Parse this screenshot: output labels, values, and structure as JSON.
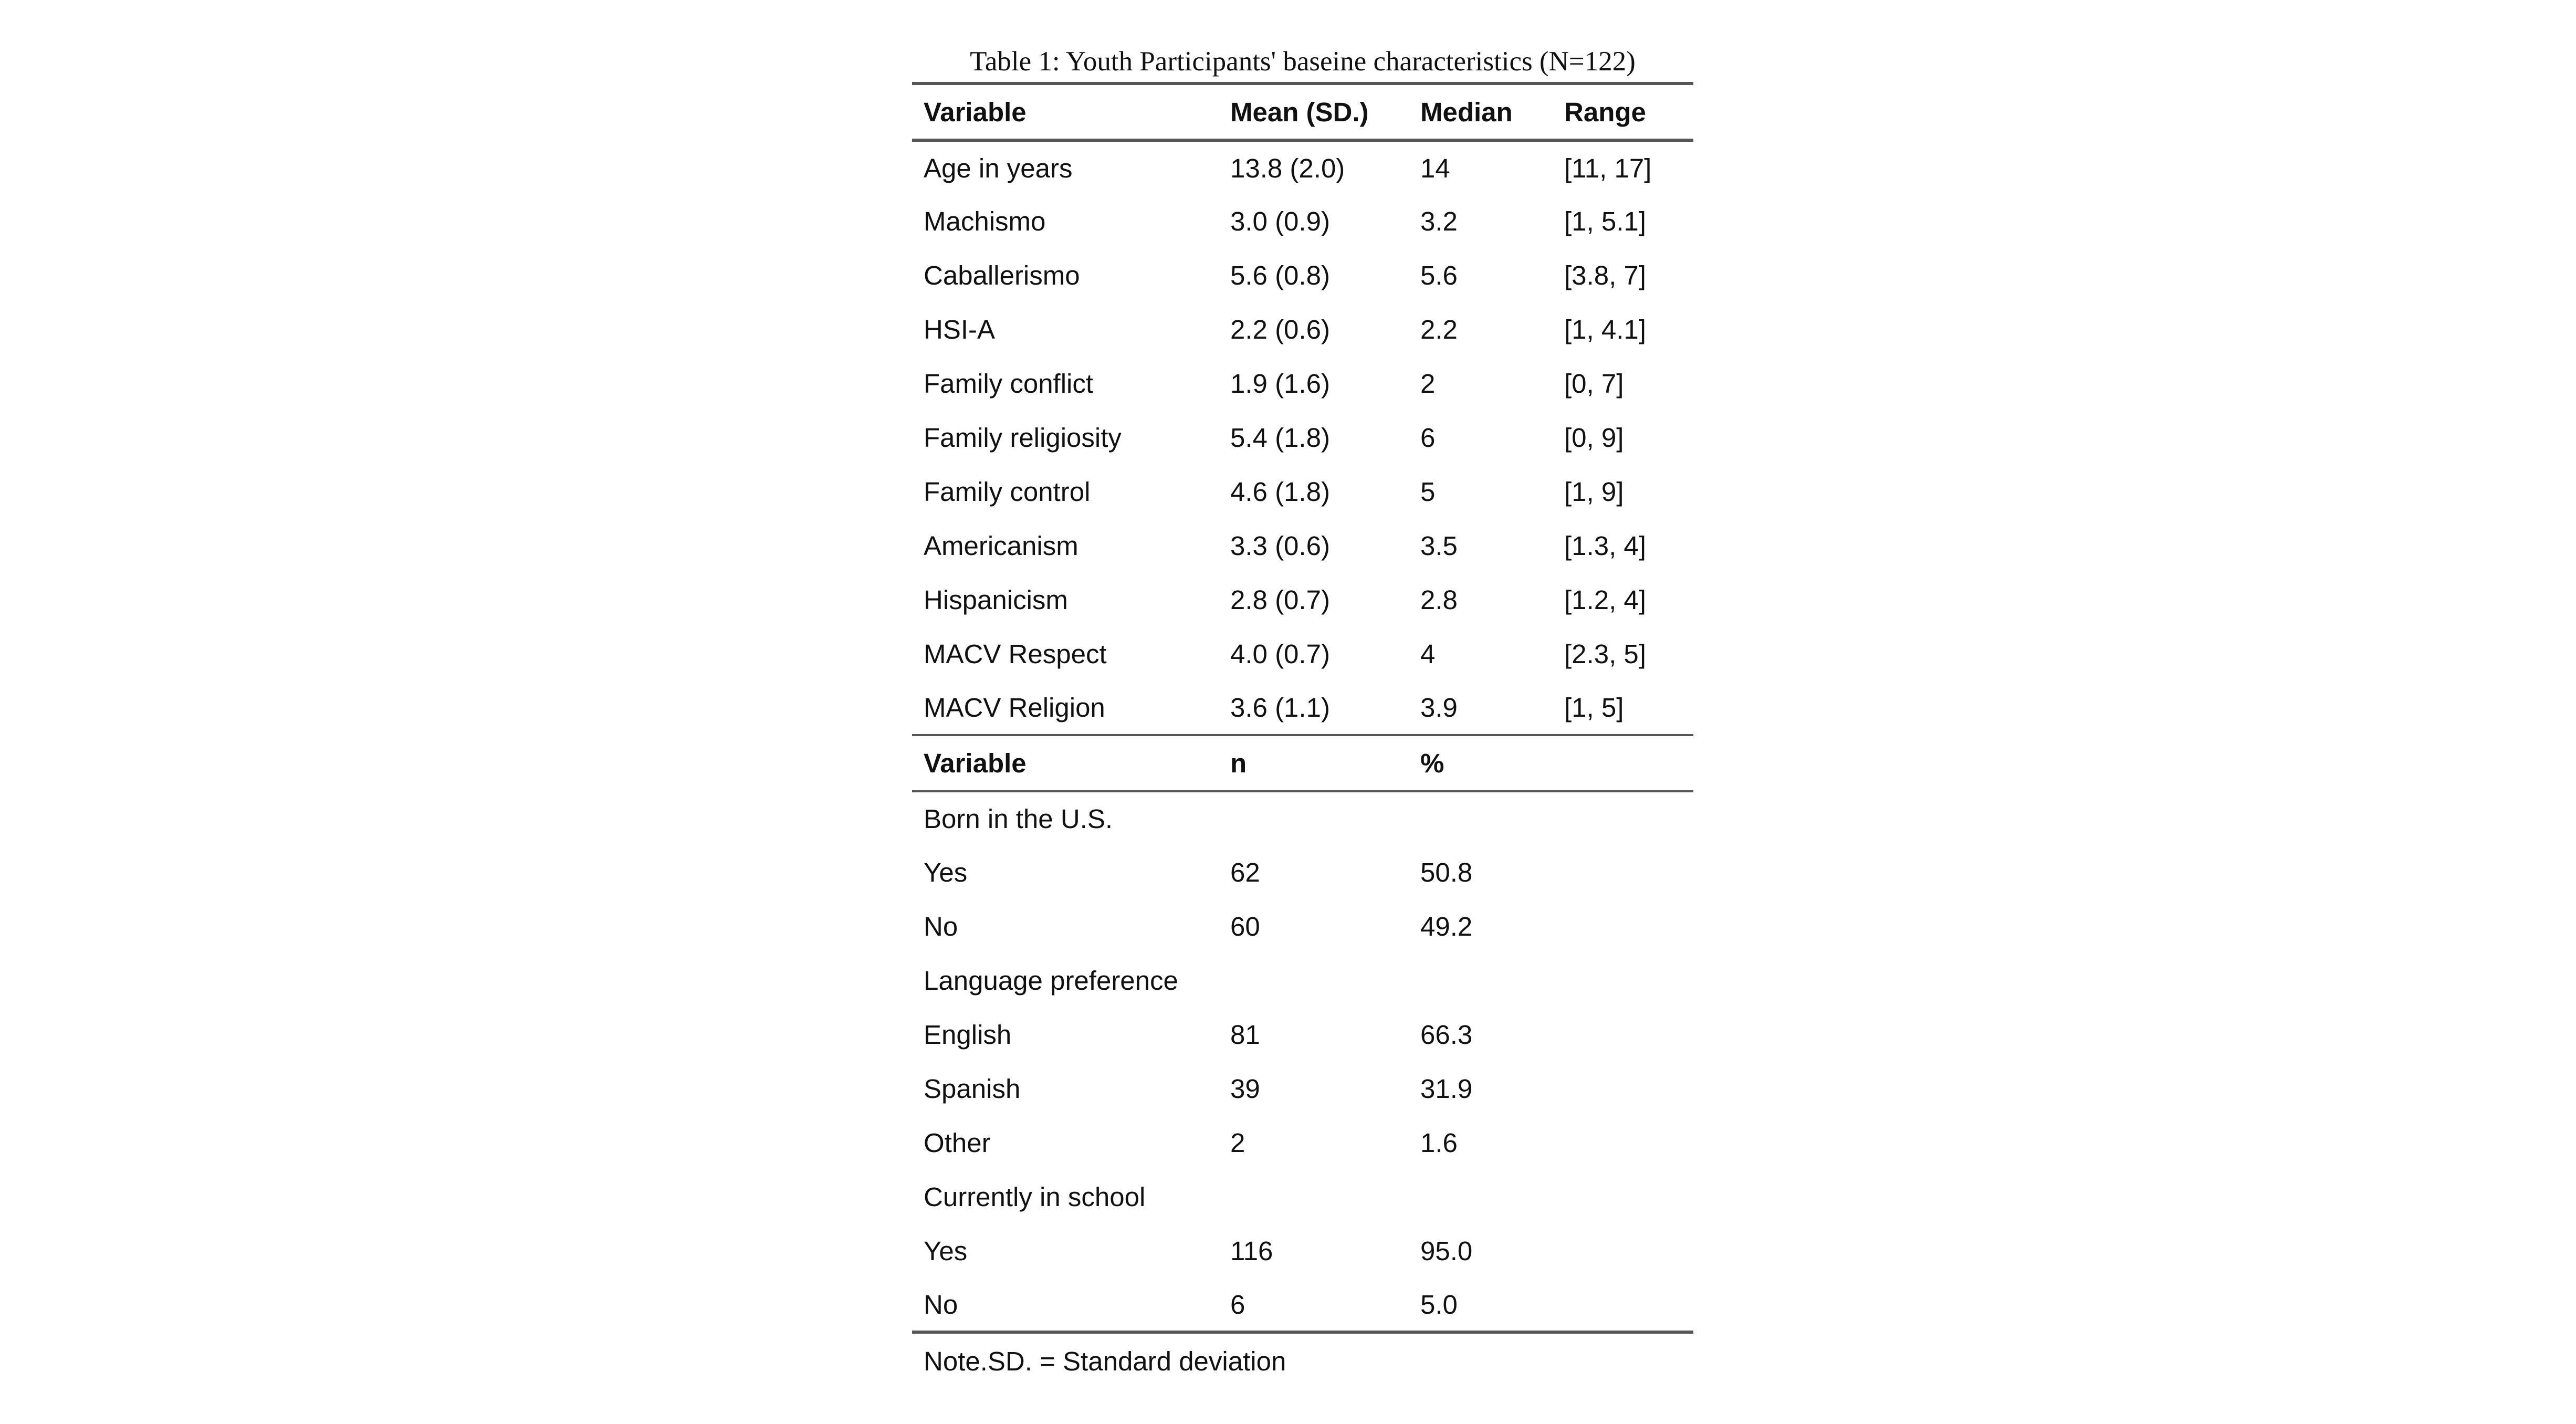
{
  "caption": "Table 1: Youth Participants' baseine characteristics (N=122)",
  "continuous": {
    "headers": [
      "Variable",
      "Mean (SD.)",
      "Median",
      "Range"
    ],
    "rows": [
      [
        "Age in years",
        "13.8 (2.0)",
        "14",
        "[11, 17]"
      ],
      [
        "Machismo",
        "3.0 (0.9)",
        "3.2",
        "[1, 5.1]"
      ],
      [
        "Caballerismo",
        "5.6 (0.8)",
        "5.6",
        "[3.8, 7]"
      ],
      [
        "HSI-A",
        "2.2 (0.6)",
        "2.2",
        "[1, 4.1]"
      ],
      [
        "Family conflict",
        "1.9 (1.6)",
        "2",
        "[0, 7]"
      ],
      [
        "Family religiosity",
        "5.4 (1.8)",
        "6",
        "[0, 9]"
      ],
      [
        "Family control",
        "4.6 (1.8)",
        "5",
        "[1, 9]"
      ],
      [
        "Americanism",
        "3.3 (0.6)",
        "3.5",
        "[1.3, 4]"
      ],
      [
        "Hispanicism",
        "2.8 (0.7)",
        "2.8",
        "[1.2, 4]"
      ],
      [
        "MACV Respect",
        "4.0 (0.7)",
        "4",
        "[2.3, 5]"
      ],
      [
        "MACV Religion",
        "3.6 (1.1)",
        "3.9",
        "[1, 5]"
      ]
    ]
  },
  "categorical": {
    "headers": [
      "Variable",
      "n",
      "%",
      ""
    ],
    "rows": [
      [
        "Born in the U.S.",
        "",
        "",
        ""
      ],
      [
        "Yes",
        "62",
        "50.8",
        ""
      ],
      [
        "No",
        "60",
        "49.2",
        ""
      ],
      [
        "Language preference",
        "",
        "",
        ""
      ],
      [
        "English",
        "81",
        "66.3",
        ""
      ],
      [
        "Spanish",
        "39",
        "31.9",
        ""
      ],
      [
        "Other",
        "2",
        "1.6",
        ""
      ],
      [
        "Currently in school",
        "",
        "",
        ""
      ],
      [
        "Yes",
        "116",
        "95.0",
        ""
      ],
      [
        "No",
        "6",
        "5.0",
        ""
      ]
    ]
  },
  "note": "Note.SD. = Standard deviation"
}
